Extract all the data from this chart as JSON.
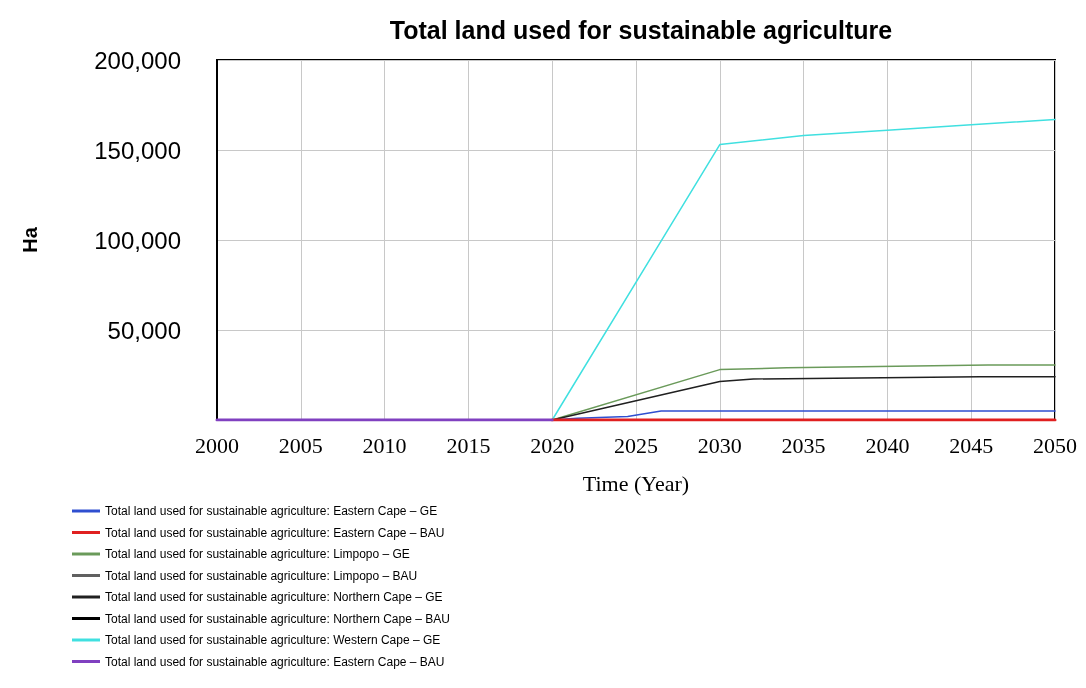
{
  "chart_data": {
    "type": "line",
    "title": "Total land used for sustainable agriculture",
    "xlabel": "Time (Year)",
    "ylabel": "Ha",
    "xlim": [
      2000,
      2050
    ],
    "xticks": [
      2000,
      2005,
      2010,
      2015,
      2020,
      2025,
      2030,
      2035,
      2040,
      2045,
      2050
    ],
    "ylim": [
      0,
      200000
    ],
    "yticks": [
      {
        "value": 0,
        "label": null
      },
      {
        "value": 50000,
        "label": "50,000"
      },
      {
        "value": 100000,
        "label": "100,000"
      },
      {
        "value": 150000,
        "label": "150,000"
      },
      {
        "value": 200000,
        "label": "200,000"
      }
    ],
    "grid": true,
    "legend": "bottom",
    "line_style": "solid",
    "marker": "none",
    "series": [
      {
        "name": "Total land used for sustainable agriculture: Eastern Cape – GE",
        "color": "#2f4fd0",
        "x": [
          2020,
          2021.5,
          2024.5,
          2026.5,
          2050
        ],
        "values": [
          0,
          1000,
          2000,
          5000,
          5000
        ]
      },
      {
        "name": "Total land used for sustainable agriculture: Eastern Cape – BAU",
        "color": "#e02020",
        "x": [
          2020,
          2050
        ],
        "values": [
          0,
          0
        ]
      },
      {
        "name": "Total land used for sustainable agriculture: Limpopo – GE",
        "color": "#6a9a5a",
        "x": [
          2020,
          2030,
          2034,
          2046,
          2050
        ],
        "values": [
          0,
          28000,
          29000,
          30500,
          30500
        ]
      },
      {
        "name": "Total land used for sustainable agriculture: Limpopo – BAU",
        "color": "#606060"
      },
      {
        "name": "Total land used for sustainable agriculture: Northern Cape – GE",
        "color": "#202020",
        "x": [
          2020,
          2030,
          2032,
          2045.5,
          2050
        ],
        "values": [
          0,
          21400,
          22800,
          24000,
          24000
        ]
      },
      {
        "name": "Total land used for sustainable agriculture: Northern Cape – BAU",
        "color": "#000000"
      },
      {
        "name": "Total land used for sustainable agriculture: Western Cape – GE",
        "color": "#40e0e0",
        "x": [
          2020,
          2030,
          2035,
          2040,
          2045,
          2050
        ],
        "values": [
          0,
          153000,
          158000,
          161000,
          164000,
          167000
        ]
      },
      {
        "name": "Total land used for sustainable agriculture: Eastern Cape – BAU",
        "color": "#8040c0",
        "x": [
          2000,
          2020
        ],
        "values": [
          0,
          0
        ]
      }
    ]
  }
}
